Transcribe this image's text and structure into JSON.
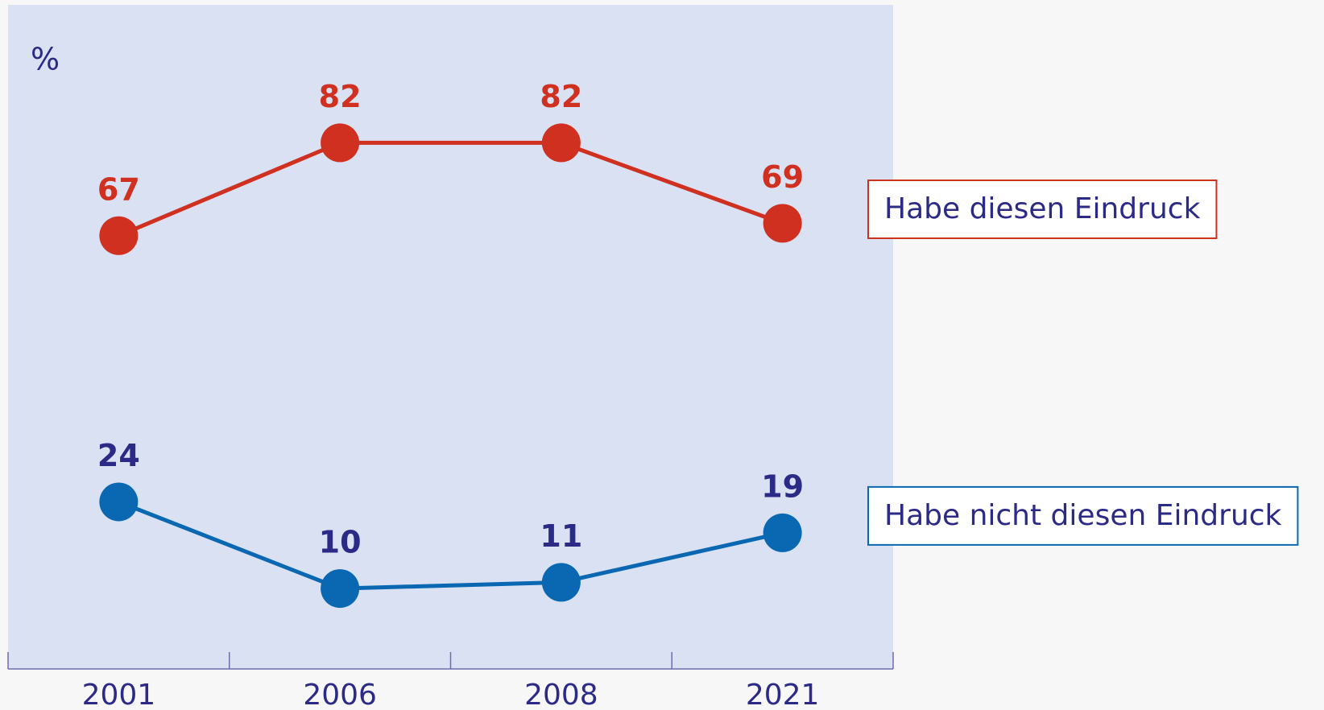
{
  "chart_data": {
    "type": "line",
    "y_label": "%",
    "categories": [
      "2001",
      "2006",
      "2008",
      "2021"
    ],
    "series": [
      {
        "name": "Habe diesen Eindruck",
        "color": "#d0301f",
        "label_color": "#d0301f",
        "values": [
          67,
          82,
          82,
          69
        ]
      },
      {
        "name": "Habe nicht diesen Eindruck",
        "color": "#0a68b2",
        "label_color": "#2b2a86",
        "values": [
          24,
          10,
          11,
          19
        ]
      }
    ]
  }
}
